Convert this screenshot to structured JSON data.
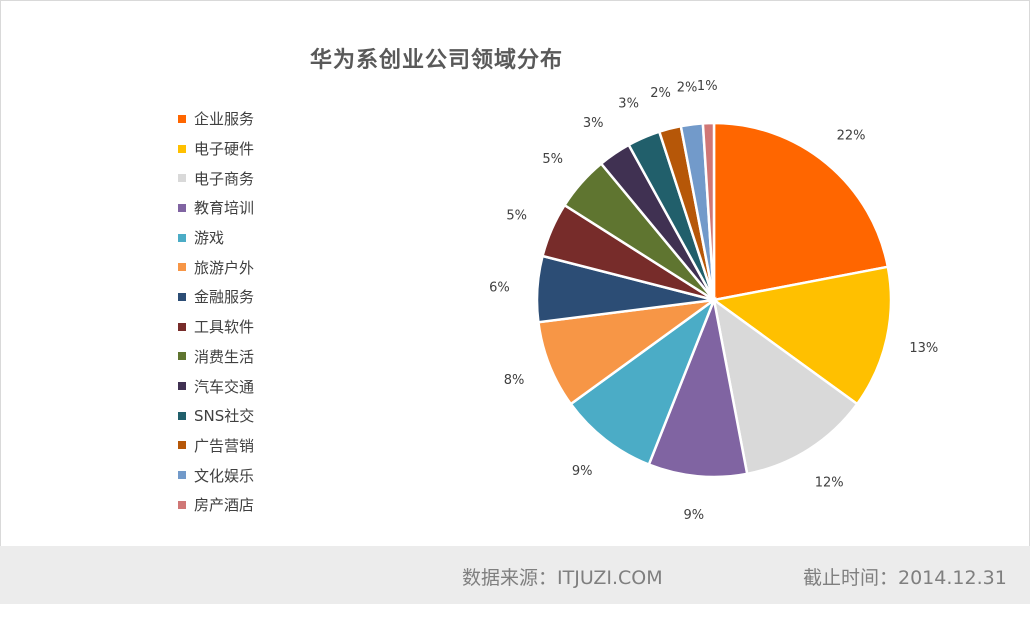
{
  "chart_data": {
    "type": "pie",
    "title": "华为系创业公司领域分布",
    "legend_position": "left",
    "slices": [
      {
        "label": "企业服务",
        "value": 22,
        "data_label": "22%",
        "color": "#FF6600"
      },
      {
        "label": "电子硬件",
        "value": 13,
        "data_label": "13%",
        "color": "#FFC000"
      },
      {
        "label": "电子商务",
        "value": 12,
        "data_label": "12%",
        "color": "#D9D9D9"
      },
      {
        "label": "教育培训",
        "value": 9,
        "data_label": "9%",
        "color": "#8064A2"
      },
      {
        "label": "游戏",
        "value": 9,
        "data_label": "9%",
        "color": "#4BACC6"
      },
      {
        "label": "旅游户外",
        "value": 8,
        "data_label": "8%",
        "color": "#F79646"
      },
      {
        "label": "金融服务",
        "value": 6,
        "data_label": "6%",
        "color": "#2C4D75"
      },
      {
        "label": "工具软件",
        "value": 5,
        "data_label": "5%",
        "color": "#772C2A"
      },
      {
        "label": "消费生活",
        "value": 5,
        "data_label": "5%",
        "color": "#5F7530"
      },
      {
        "label": "汽车交通",
        "value": 3,
        "data_label": "3%",
        "color": "#403152"
      },
      {
        "label": "SNS社交",
        "value": 3,
        "data_label": "3%",
        "color": "#215F6B"
      },
      {
        "label": "广告营销",
        "value": 2,
        "data_label": "2%",
        "color": "#B65708"
      },
      {
        "label": "文化娱乐",
        "value": 2,
        "data_label": "2%",
        "color": "#729ACA"
      },
      {
        "label": "房产酒店",
        "value": 1,
        "data_label": "1%",
        "color": "#D07776"
      }
    ]
  },
  "footer": {
    "source": "数据来源：ITJUZI.COM",
    "date": "截止时间：2014.12.31"
  }
}
